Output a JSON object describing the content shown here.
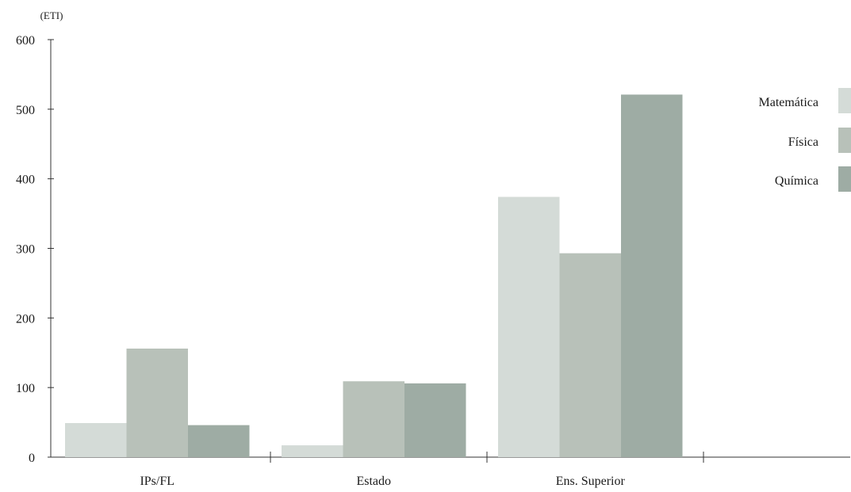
{
  "chart_data": {
    "type": "bar",
    "ylabel": "(ETI)",
    "ylim": [
      0,
      600
    ],
    "yticks": [
      0,
      100,
      200,
      300,
      400,
      500,
      600
    ],
    "categories": [
      "IPs/FL",
      "Estado",
      "Ens. Superior"
    ],
    "series": [
      {
        "name": "Matemática",
        "color": "#d4dbd7",
        "values": [
          49,
          17,
          374
        ]
      },
      {
        "name": "Física",
        "color": "#b8c1b9",
        "values": [
          156,
          109,
          293
        ]
      },
      {
        "name": "Química",
        "color": "#9eaca4",
        "values": [
          46,
          106,
          521
        ]
      }
    ],
    "legend_position": "right",
    "grid": false
  }
}
